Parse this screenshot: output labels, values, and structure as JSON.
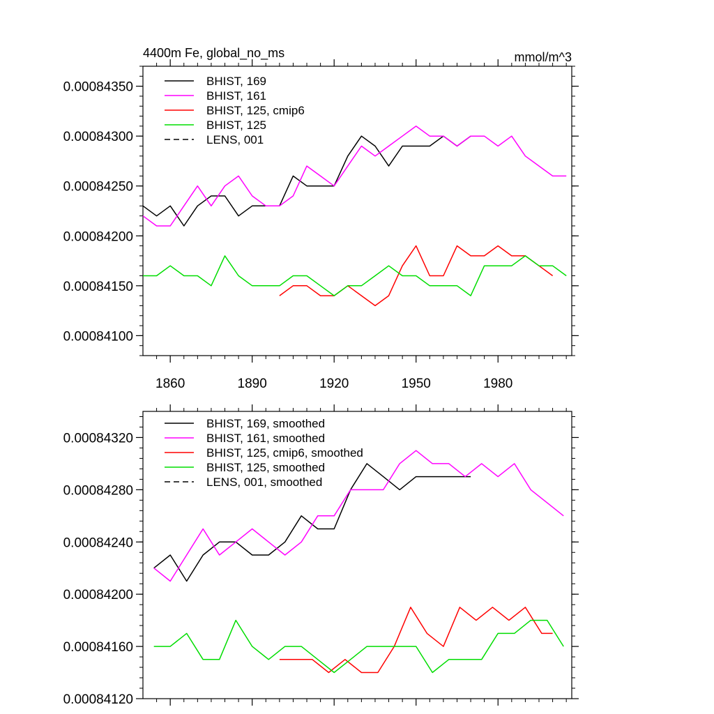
{
  "chart_data": [
    {
      "type": "line",
      "title": "4400m Fe, global_no_ms",
      "units": "mmol/m^3",
      "xlim": [
        1850,
        2007
      ],
      "ylim": [
        0.0008408,
        0.0008437
      ],
      "yticks": [
        0.000841,
        0.0008415,
        0.000842,
        0.0008425,
        0.000843,
        0.0008435
      ],
      "ytick_labels": [
        "0.00084100",
        "0.00084150",
        "0.00084200",
        "0.00084250",
        "0.00084300",
        "0.00084350"
      ],
      "xticks": [
        1860,
        1890,
        1920,
        1950,
        1980
      ],
      "xtick_labels": [
        "1860",
        "1890",
        "1920",
        "1950",
        "1980"
      ],
      "legend": [
        "BHIST, 169",
        "BHIST, 161",
        "BHIST, 125, cmip6",
        "BHIST, 125",
        "LENS, 001"
      ],
      "series": [
        {
          "name": "BHIST, 169",
          "color": "#000000",
          "dash": "solid",
          "x": [
            1850,
            1855,
            1860,
            1865,
            1870,
            1875,
            1880,
            1885,
            1890,
            1895,
            1900,
            1905,
            1910,
            1915,
            1920,
            1925,
            1930,
            1935,
            1940,
            1945,
            1950,
            1955,
            1960,
            1965,
            1970
          ],
          "values": [
            0.0008423,
            0.0008422,
            0.0008423,
            0.0008421,
            0.0008423,
            0.0008424,
            0.0008424,
            0.0008422,
            0.0008423,
            0.0008423,
            0.0008423,
            0.0008426,
            0.0008425,
            0.0008425,
            0.0008425,
            0.0008428,
            0.000843,
            0.0008429,
            0.0008427,
            0.0008429,
            0.0008429,
            0.0008429,
            0.000843,
            0.0008429,
            0.000843
          ]
        },
        {
          "name": "BHIST, 161",
          "color": "#ff00ff",
          "dash": "solid",
          "x": [
            1850,
            1855,
            1860,
            1865,
            1870,
            1875,
            1880,
            1885,
            1890,
            1895,
            1900,
            1905,
            1910,
            1915,
            1920,
            1925,
            1930,
            1935,
            1940,
            1945,
            1950,
            1955,
            1960,
            1965,
            1970,
            1975,
            1980,
            1985,
            1990,
            1995,
            2000,
            2005
          ],
          "values": [
            0.0008422,
            0.0008421,
            0.0008421,
            0.0008423,
            0.0008425,
            0.0008423,
            0.0008425,
            0.0008426,
            0.0008424,
            0.0008423,
            0.0008423,
            0.0008424,
            0.0008427,
            0.0008426,
            0.0008425,
            0.0008427,
            0.0008429,
            0.0008428,
            0.0008429,
            0.000843,
            0.0008431,
            0.000843,
            0.000843,
            0.0008429,
            0.000843,
            0.000843,
            0.0008429,
            0.000843,
            0.0008428,
            0.0008427,
            0.0008426,
            0.0008426
          ]
        },
        {
          "name": "BHIST, 125, cmip6",
          "color": "#ff0000",
          "dash": "solid",
          "x": [
            1900,
            1905,
            1910,
            1915,
            1920,
            1925,
            1930,
            1935,
            1940,
            1945,
            1950,
            1955,
            1960,
            1965,
            1970,
            1975,
            1980,
            1985,
            1990,
            1995,
            2000
          ],
          "values": [
            0.0008414,
            0.0008415,
            0.0008415,
            0.0008414,
            0.0008414,
            0.0008415,
            0.0008414,
            0.0008413,
            0.0008414,
            0.0008417,
            0.0008419,
            0.0008416,
            0.0008416,
            0.0008419,
            0.0008418,
            0.0008418,
            0.0008419,
            0.0008418,
            0.0008418,
            0.0008417,
            0.0008416
          ]
        },
        {
          "name": "BHIST, 125",
          "color": "#00dd00",
          "dash": "solid",
          "x": [
            1850,
            1855,
            1860,
            1865,
            1870,
            1875,
            1880,
            1885,
            1890,
            1895,
            1900,
            1905,
            1910,
            1915,
            1920,
            1925,
            1930,
            1935,
            1940,
            1945,
            1950,
            1955,
            1960,
            1965,
            1970,
            1975,
            1980,
            1985,
            1990,
            1995,
            2000,
            2005
          ],
          "values": [
            0.0008416,
            0.0008416,
            0.0008417,
            0.0008416,
            0.0008416,
            0.0008415,
            0.0008418,
            0.0008416,
            0.0008415,
            0.0008415,
            0.0008415,
            0.0008416,
            0.0008416,
            0.0008415,
            0.0008414,
            0.0008415,
            0.0008415,
            0.0008416,
            0.0008417,
            0.0008416,
            0.0008416,
            0.0008415,
            0.0008415,
            0.0008415,
            0.0008414,
            0.0008417,
            0.0008417,
            0.0008417,
            0.0008418,
            0.0008417,
            0.0008417,
            0.0008416
          ]
        },
        {
          "name": "LENS, 001",
          "color": "#000000",
          "dash": "dashed",
          "x": [],
          "values": []
        }
      ]
    },
    {
      "type": "line",
      "xlim": [
        1850,
        2007
      ],
      "ylim": [
        0.0008412,
        0.0008434
      ],
      "yticks": [
        0.0008412,
        0.0008416,
        0.000842,
        0.0008424,
        0.0008428,
        0.0008432
      ],
      "ytick_labels": [
        "0.00084120",
        "0.00084160",
        "0.00084200",
        "0.00084240",
        "0.00084280",
        "0.00084320"
      ],
      "xticks": [
        1860,
        1890,
        1920,
        1950,
        1980
      ],
      "legend": [
        "BHIST, 169, smoothed",
        "BHIST, 161, smoothed",
        "BHIST, 125, cmip6, smoothed",
        "BHIST, 125, smoothed",
        "LENS, 001, smoothed"
      ],
      "series": [
        {
          "name": "BHIST, 169, smoothed",
          "color": "#000000",
          "dash": "solid",
          "x": [
            1854,
            1860,
            1866,
            1872,
            1878,
            1884,
            1890,
            1896,
            1902,
            1908,
            1914,
            1920,
            1926,
            1932,
            1938,
            1944,
            1950,
            1956,
            1962,
            1968,
            1970
          ],
          "values": [
            0.0008422,
            0.0008423,
            0.0008421,
            0.0008423,
            0.0008424,
            0.0008424,
            0.0008423,
            0.0008423,
            0.0008424,
            0.0008426,
            0.0008425,
            0.0008425,
            0.0008428,
            0.000843,
            0.0008429,
            0.0008428,
            0.0008429,
            0.0008429,
            0.0008429,
            0.0008429,
            0.0008429
          ]
        },
        {
          "name": "BHIST, 161, smoothed",
          "color": "#ff00ff",
          "dash": "solid",
          "x": [
            1854,
            1860,
            1866,
            1872,
            1878,
            1884,
            1890,
            1896,
            1902,
            1908,
            1914,
            1920,
            1926,
            1932,
            1938,
            1944,
            1950,
            1956,
            1962,
            1968,
            1974,
            1980,
            1986,
            1992,
            1998,
            2004
          ],
          "values": [
            0.0008422,
            0.0008421,
            0.0008423,
            0.0008425,
            0.0008423,
            0.0008424,
            0.0008425,
            0.0008424,
            0.0008423,
            0.0008424,
            0.0008426,
            0.0008426,
            0.0008428,
            0.0008428,
            0.0008428,
            0.000843,
            0.0008431,
            0.000843,
            0.000843,
            0.0008429,
            0.000843,
            0.0008429,
            0.000843,
            0.0008428,
            0.0008427,
            0.0008426
          ]
        },
        {
          "name": "BHIST, 125, cmip6, smoothed",
          "color": "#ff0000",
          "dash": "solid",
          "x": [
            1900,
            1906,
            1912,
            1918,
            1924,
            1930,
            1936,
            1942,
            1948,
            1954,
            1960,
            1966,
            1972,
            1978,
            1984,
            1990,
            1996,
            2000
          ],
          "values": [
            0.0008415,
            0.0008415,
            0.0008415,
            0.0008414,
            0.0008415,
            0.0008414,
            0.0008414,
            0.0008416,
            0.0008419,
            0.0008417,
            0.0008416,
            0.0008419,
            0.0008418,
            0.0008419,
            0.0008418,
            0.0008419,
            0.0008417,
            0.0008417
          ]
        },
        {
          "name": "BHIST, 125, smoothed",
          "color": "#00dd00",
          "dash": "solid",
          "x": [
            1854,
            1860,
            1866,
            1872,
            1878,
            1884,
            1890,
            1896,
            1902,
            1908,
            1914,
            1920,
            1926,
            1932,
            1938,
            1944,
            1950,
            1956,
            1962,
            1968,
            1974,
            1980,
            1986,
            1992,
            1998,
            2004
          ],
          "values": [
            0.0008416,
            0.0008416,
            0.0008417,
            0.0008415,
            0.0008415,
            0.0008418,
            0.0008416,
            0.0008415,
            0.0008416,
            0.0008416,
            0.0008415,
            0.0008414,
            0.0008415,
            0.0008416,
            0.0008416,
            0.0008416,
            0.0008416,
            0.0008414,
            0.0008415,
            0.0008415,
            0.0008415,
            0.0008417,
            0.0008417,
            0.0008418,
            0.0008418,
            0.0008416
          ]
        },
        {
          "name": "LENS, 001, smoothed",
          "color": "#000000",
          "dash": "dashed",
          "x": [],
          "values": []
        }
      ]
    }
  ]
}
